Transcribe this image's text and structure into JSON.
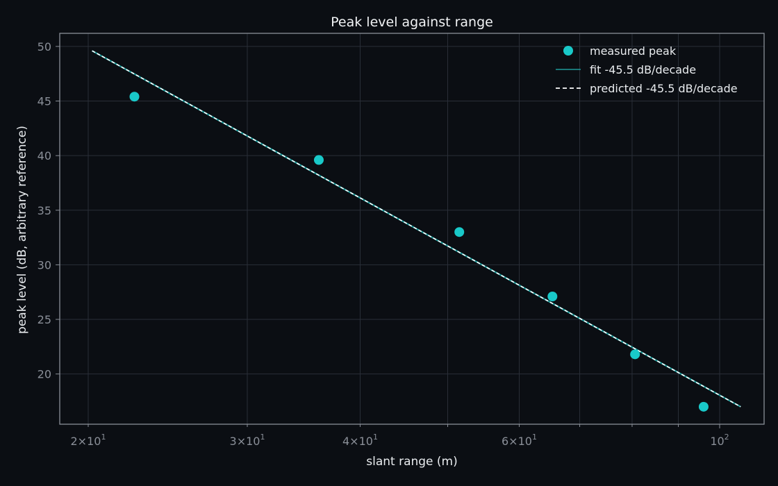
{
  "chart_data": {
    "type": "scatter",
    "title": "Peak level against range",
    "xlabel": "slant range (m)",
    "ylabel": "peak level (dB, arbitrary reference)",
    "x_scale": "log",
    "xlim": [
      18.6,
      112
    ],
    "ylim": [
      15.4,
      51.2
    ],
    "grid": true,
    "legend_position": "top-right",
    "x_ticks": [
      {
        "value": 20,
        "mantissa": "2",
        "exp": "1",
        "major": false
      },
      {
        "value": 30,
        "mantissa": "3",
        "exp": "1",
        "major": false
      },
      {
        "value": 40,
        "mantissa": "4",
        "exp": "1",
        "major": false
      },
      {
        "value": 60,
        "mantissa": "6",
        "exp": "1",
        "major": false
      },
      {
        "value": 100,
        "mantissa": "10",
        "exp": "2",
        "major": true
      }
    ],
    "x_minor_gridlines": [
      50,
      70,
      80,
      90
    ],
    "y_ticks": [
      20,
      25,
      30,
      35,
      40,
      45,
      50
    ],
    "series": [
      {
        "name": "measured peak",
        "kind": "scatter",
        "color": "#19c9c9",
        "x": [
          22.5,
          36.0,
          51.5,
          65.3,
          80.6,
          96.0
        ],
        "y": [
          45.4,
          39.6,
          33.0,
          27.1,
          21.8,
          17.0
        ]
      },
      {
        "name": "fit -45.5 dB/decade",
        "kind": "line",
        "color": "#1e9a9a",
        "x": [
          20.2,
          105.5
        ],
        "y": [
          49.6,
          17.0
        ]
      },
      {
        "name": "predicted -45.5 dB/decade",
        "kind": "dashed-line",
        "color": "#ffffff",
        "x": [
          20.2,
          105.5
        ],
        "y": [
          49.6,
          17.0
        ]
      }
    ]
  },
  "colors": {
    "background": "#0b0e13",
    "axes_frame": "#8a8f98",
    "grid": "#2a2f38",
    "text": "#e9ecef"
  }
}
